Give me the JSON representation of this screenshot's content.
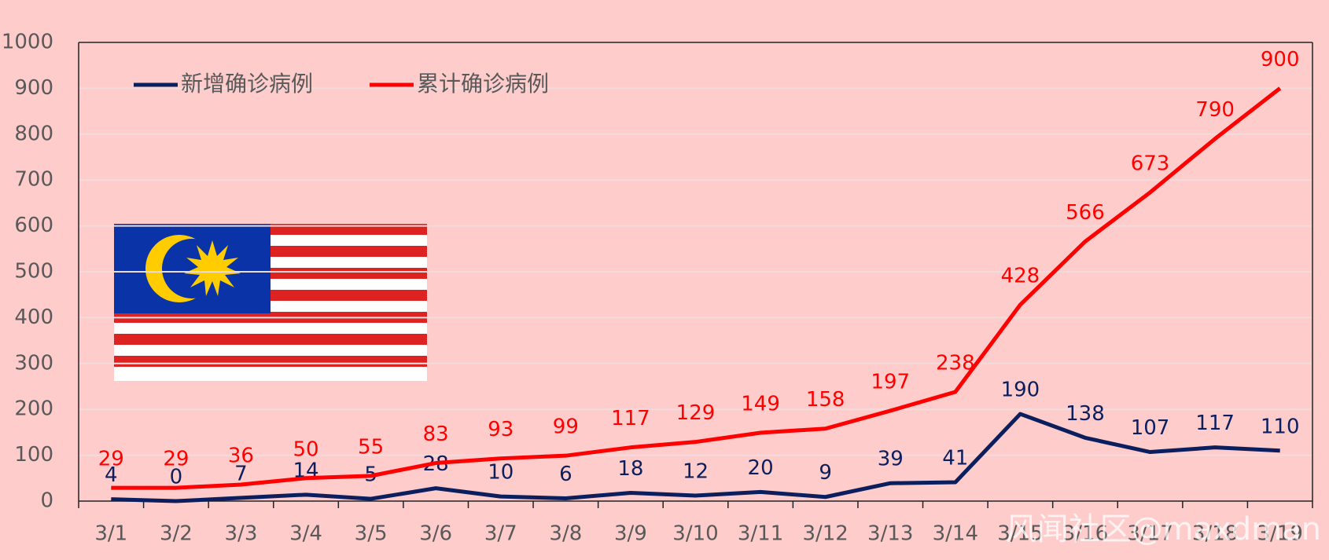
{
  "chart_data": {
    "type": "line",
    "categories": [
      "3/1",
      "3/2",
      "3/3",
      "3/4",
      "3/5",
      "3/6",
      "3/7",
      "3/8",
      "3/9",
      "3/10",
      "3/11",
      "3/12",
      "3/13",
      "3/14",
      "3/15",
      "3/16",
      "3/17",
      "3/18",
      "3/19"
    ],
    "series": [
      {
        "name": "新增确诊病例",
        "color": "#0b1f5e",
        "values": [
          4,
          0,
          7,
          14,
          5,
          28,
          10,
          6,
          18,
          12,
          20,
          9,
          39,
          41,
          190,
          138,
          107,
          117,
          110
        ]
      },
      {
        "name": "累计确诊病例",
        "color": "#ff0000",
        "values": [
          29,
          29,
          36,
          50,
          55,
          83,
          93,
          99,
          117,
          129,
          149,
          158,
          197,
          238,
          428,
          566,
          673,
          790,
          900
        ]
      }
    ],
    "ylim": [
      0,
      1000
    ],
    "yticks": [
      0,
      100,
      200,
      300,
      400,
      500,
      600,
      700,
      800,
      900,
      1000
    ],
    "grid": true,
    "legend": "top-left",
    "watermark": "风闻社区@maxdman"
  }
}
